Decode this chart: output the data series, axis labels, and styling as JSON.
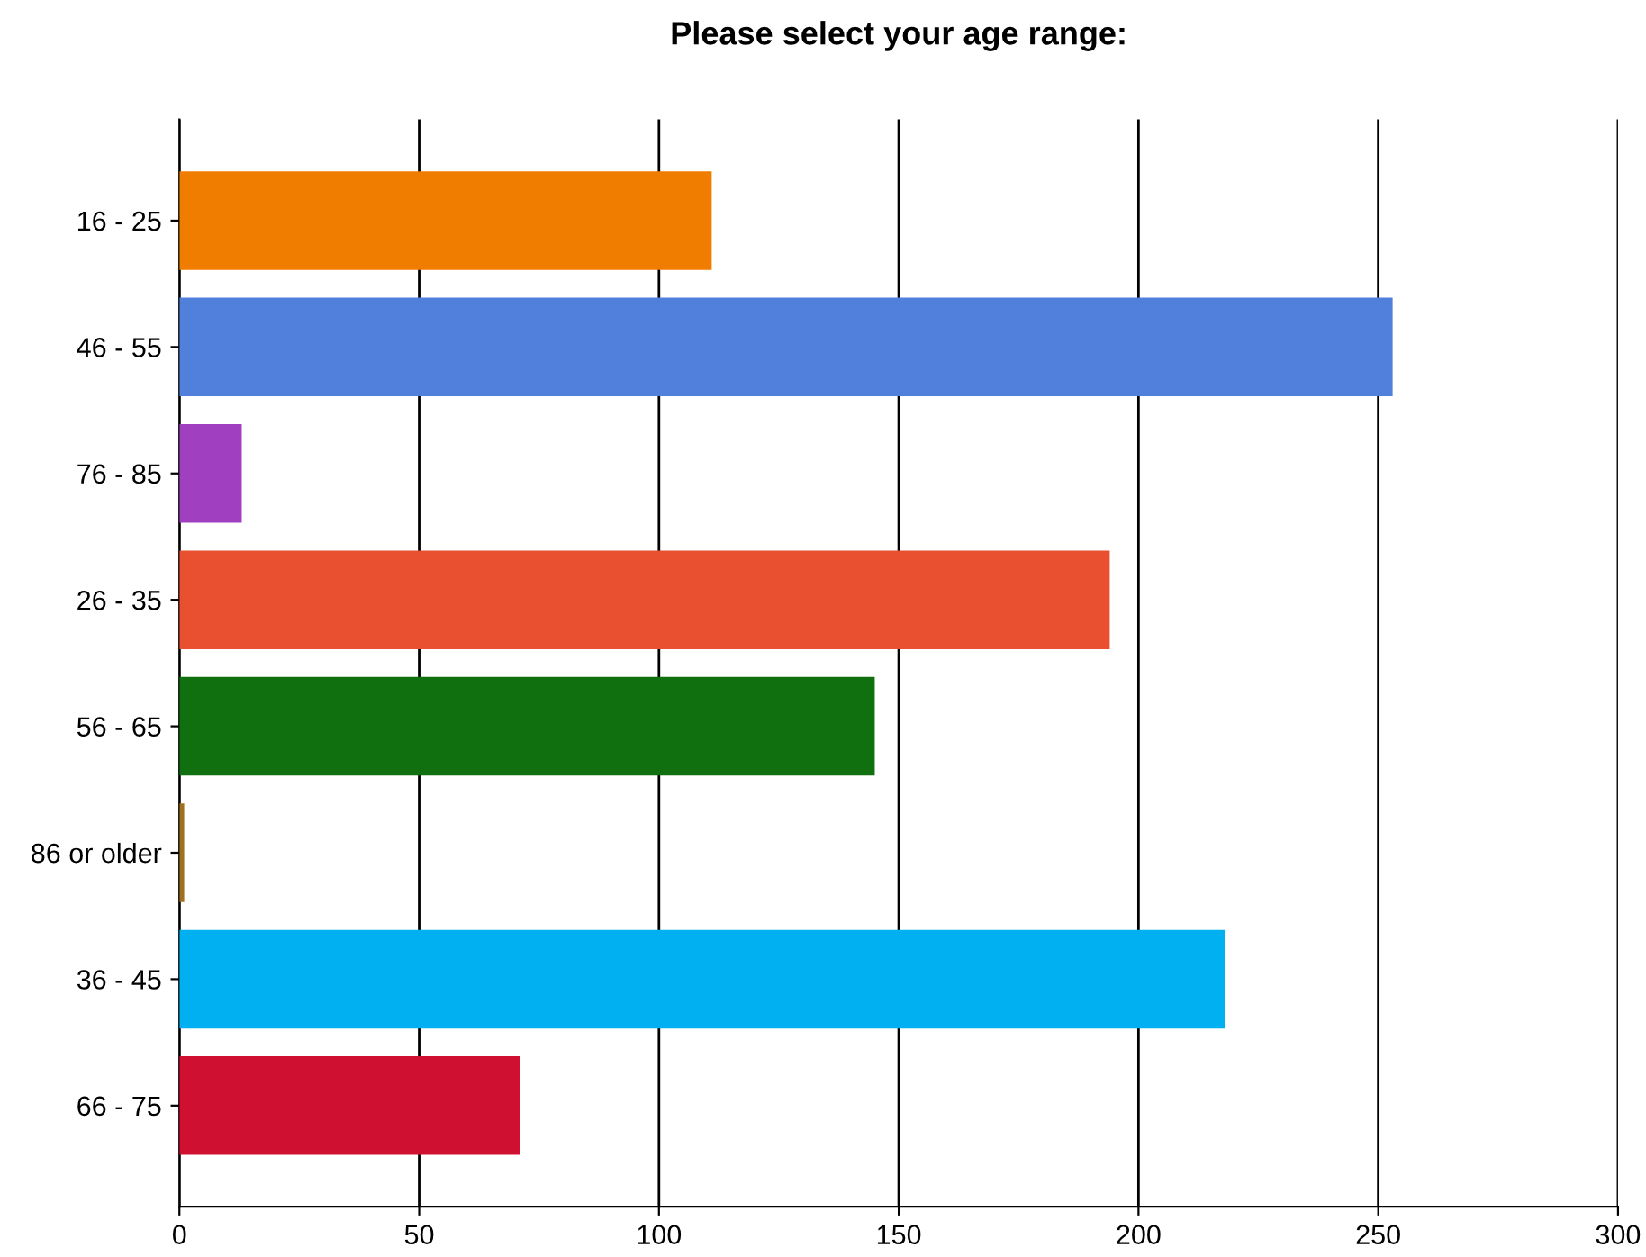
{
  "chart_data": {
    "type": "bar",
    "orientation": "horizontal",
    "title": "Please select your age range:",
    "categories": [
      "16 - 25",
      "46 - 55",
      "76 - 85",
      "26 - 35",
      "56 - 65",
      "86 or older",
      "36 - 45",
      "66 - 75"
    ],
    "values": [
      111,
      253,
      13,
      194,
      145,
      1,
      218,
      71
    ],
    "colors": [
      "#f07c00",
      "#5080dc",
      "#a040c0",
      "#e85030",
      "#107010",
      "#a07020",
      "#00b0f0",
      "#d01030"
    ],
    "xlim": [
      0,
      300
    ],
    "xticks": [
      0,
      50,
      100,
      150,
      200,
      250,
      300
    ],
    "grid": "x",
    "legend": false
  }
}
